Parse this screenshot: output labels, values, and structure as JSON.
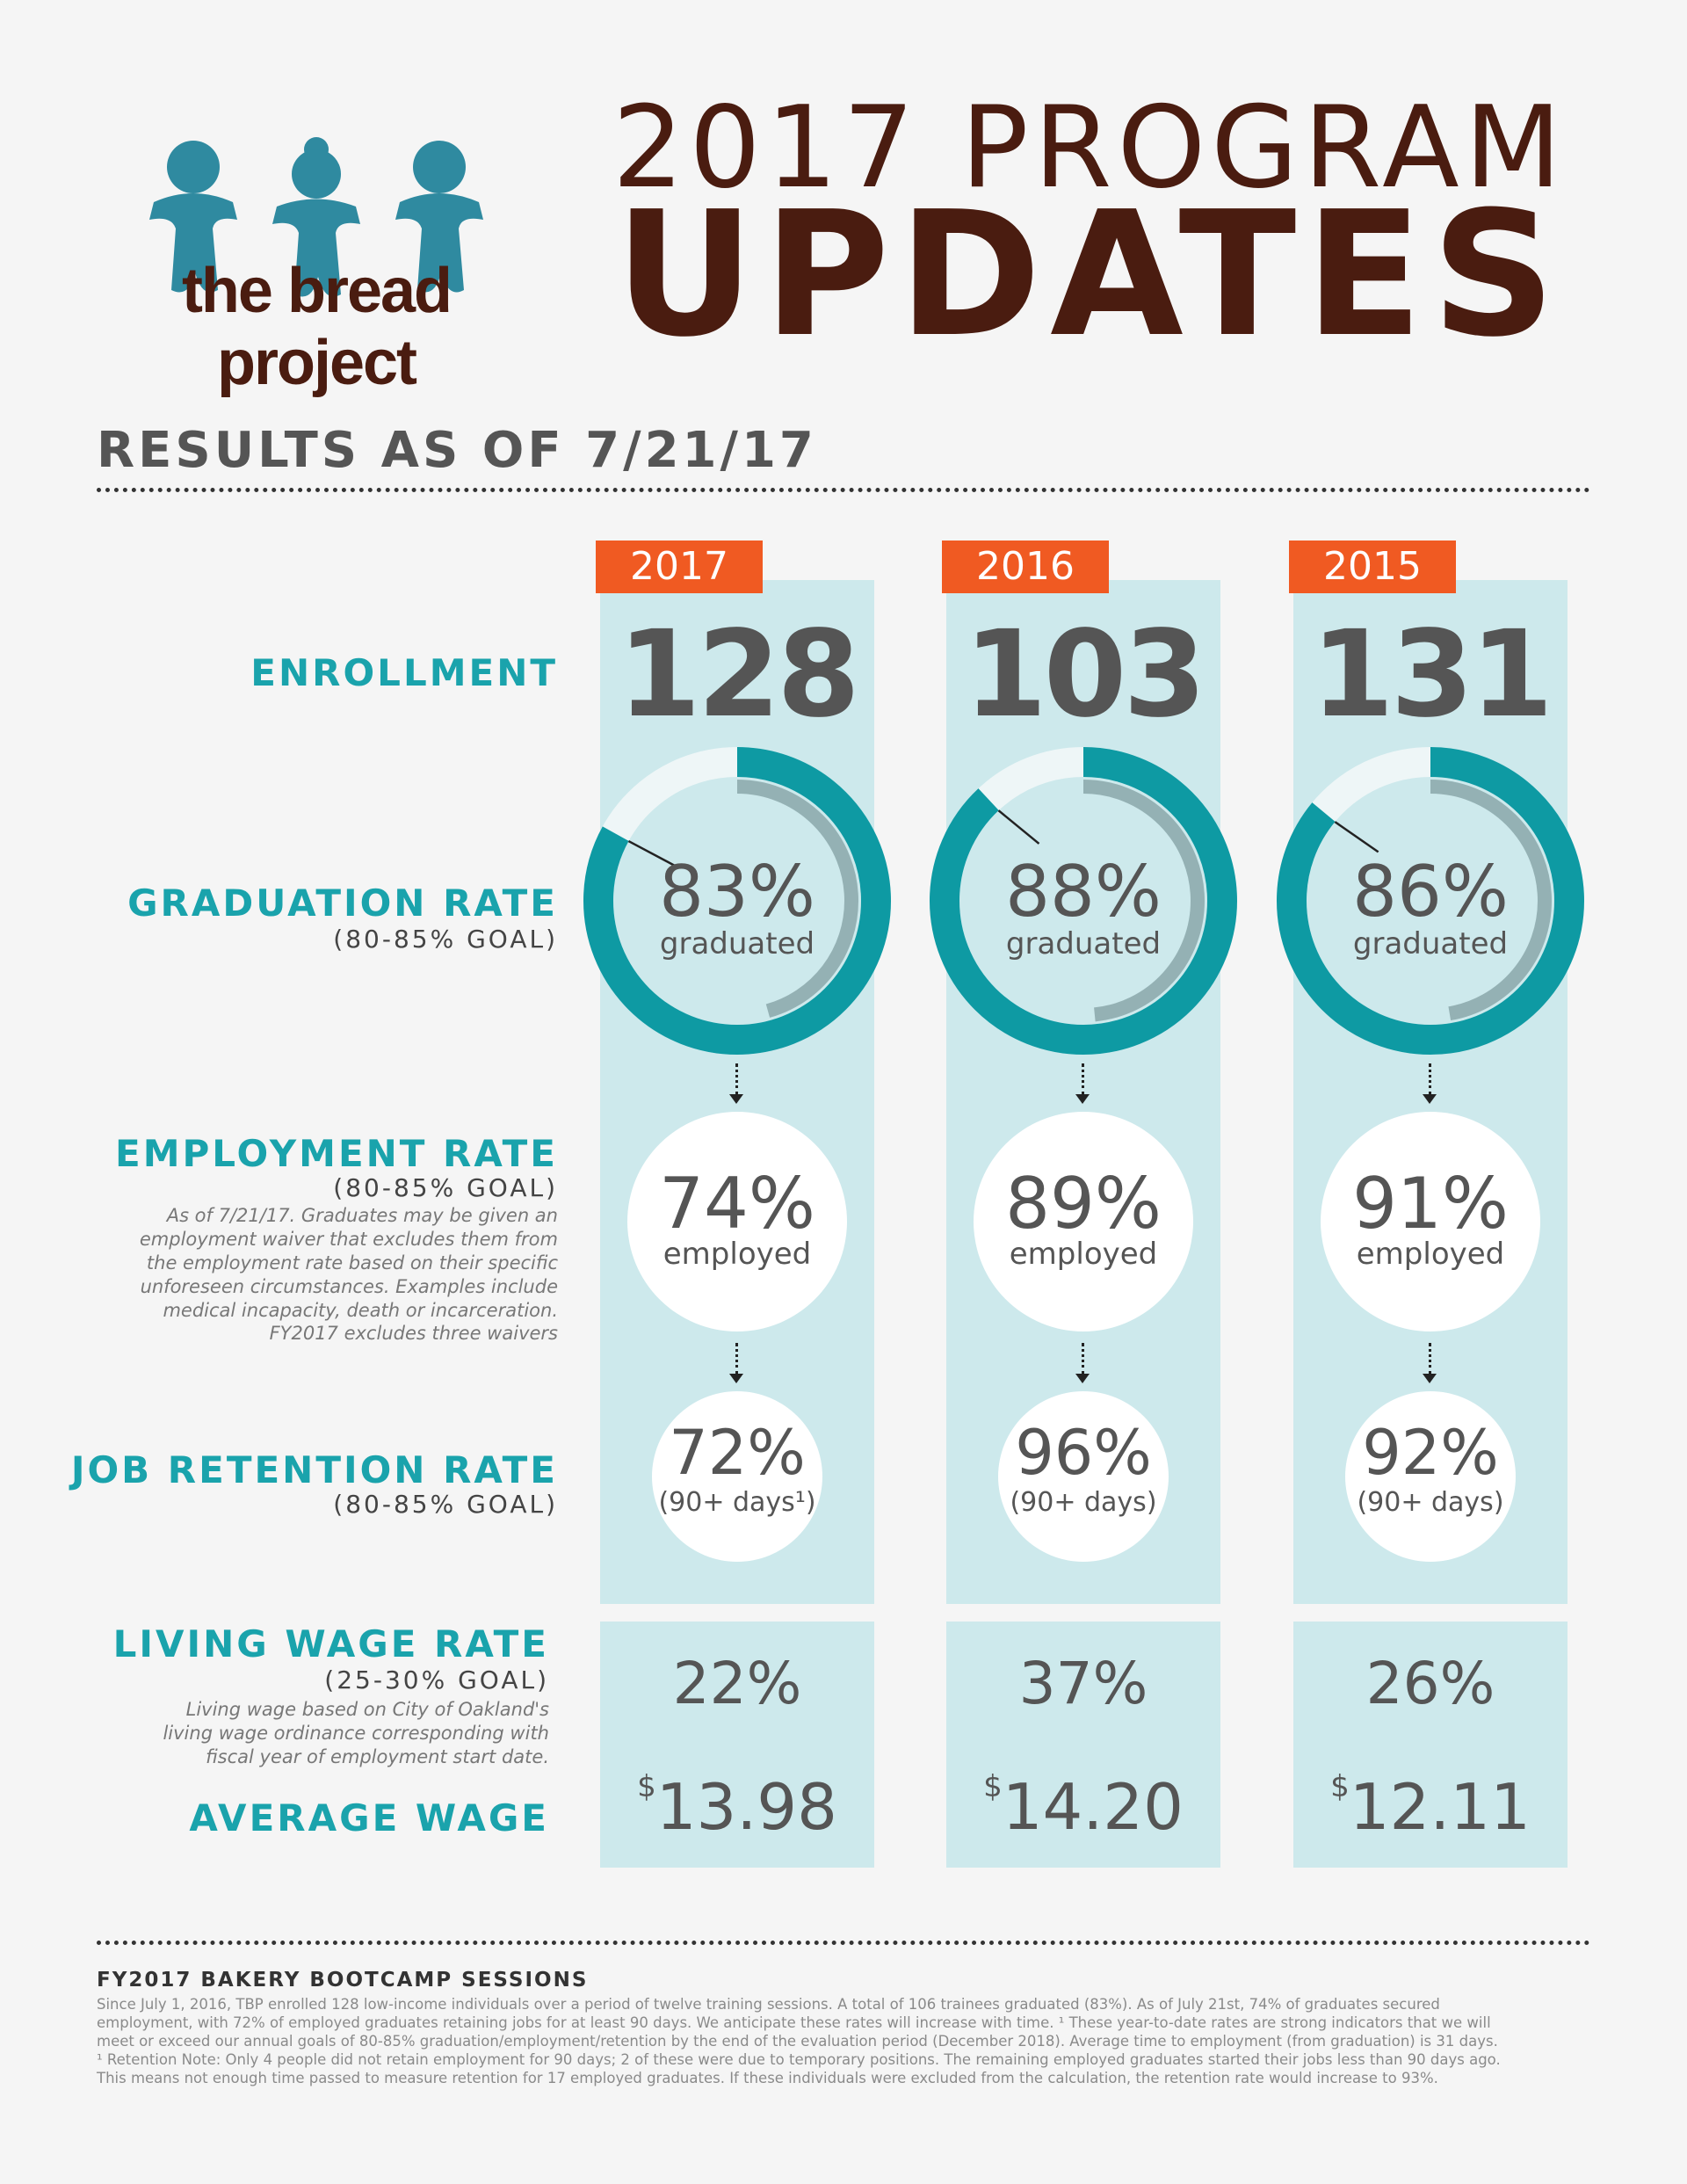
{
  "header": {
    "logo_text": "the bread project",
    "title_line1": "2017 PROGRAM",
    "title_line2": "UPDATES"
  },
  "results_heading": "RESULTS AS OF 7/21/17",
  "colors": {
    "teal": "#1aa3ac",
    "ring_teal": "#0e9aa3",
    "column_bg": "#cde9ec",
    "year_tab": "#f05a22",
    "title_brown": "#4a1c10"
  },
  "rows": {
    "enrollment": {
      "label": "ENROLLMENT"
    },
    "graduation": {
      "label": "GRADUATION RATE",
      "goal": "(80-85% GOAL)"
    },
    "employment": {
      "label": "EMPLOYMENT RATE",
      "goal": "(80-85% GOAL)",
      "note": [
        "As of 7/21/17. Graduates may be given an",
        "employment waiver that excludes them from",
        "the employment rate based on their specific",
        "unforeseen circumstances. Examples include",
        "medical incapacity, death or incarceration.",
        "FY2017 excludes three waivers"
      ]
    },
    "retention": {
      "label": "JOB RETENTION RATE",
      "goal": "(80-85% GOAL)"
    },
    "living_wage": {
      "label": "LIVING WAGE RATE",
      "goal": "(25-30% GOAL)",
      "note": [
        "Living wage based on City of Oakland's",
        "living wage ordinance corresponding with",
        "fiscal year of employment start date."
      ]
    },
    "average_wage": {
      "label": "AVERAGE WAGE"
    }
  },
  "chart_data": {
    "type": "table",
    "columns": [
      "2017",
      "2016",
      "2015"
    ],
    "enrollment": [
      128,
      103,
      131
    ],
    "graduation_rate": [
      83,
      88,
      86
    ],
    "graduation_text": [
      "83%",
      "88%",
      "86%"
    ],
    "graduation_sub": "graduated",
    "employment_rate": [
      74,
      89,
      91
    ],
    "employment_text": [
      "74%",
      "89%",
      "91%"
    ],
    "employment_sub": "employed",
    "retention_rate": [
      72,
      96,
      92
    ],
    "retention_text": [
      "72%",
      "96%",
      "92%"
    ],
    "retention_sub": [
      "(90+ days¹)",
      "(90+ days)",
      "(90+ days)"
    ],
    "living_wage_rate": [
      22,
      37,
      26
    ],
    "living_wage_text": [
      "22%",
      "37%",
      "26%"
    ],
    "average_wage": [
      13.98,
      14.2,
      12.11
    ],
    "average_wage_text": [
      "13.98",
      "14.20",
      "12.11"
    ],
    "currency_symbol": "$"
  },
  "footer": {
    "title": "FY2017 BAKERY BOOTCAMP SESSIONS",
    "lines": [
      "Since July 1, 2016, TBP enrolled 128 low-income individuals over a period of twelve training sessions. A total of 106 trainees graduated (83%). As of July 21st, 74% of graduates secured",
      "employment, with 72% of employed graduates retaining jobs for at least 90 days. We anticipate these rates will increase with time. ¹ These year-to-date rates are strong indicators that we will",
      "meet or exceed our annual goals of 80-85% graduation/employment/retention by the end of the evaluation period (December 2018). Average time to employment (from graduation) is 31 days.",
      "¹ Retention Note: Only 4 people did not retain employment for 90 days; 2 of these were due to temporary positions. The remaining employed graduates started their jobs less than 90 days ago.",
      "This means not enough time passed to measure retention for 17 employed graduates. If these individuals were excluded from the calculation, the retention rate would increase to 93%."
    ]
  }
}
